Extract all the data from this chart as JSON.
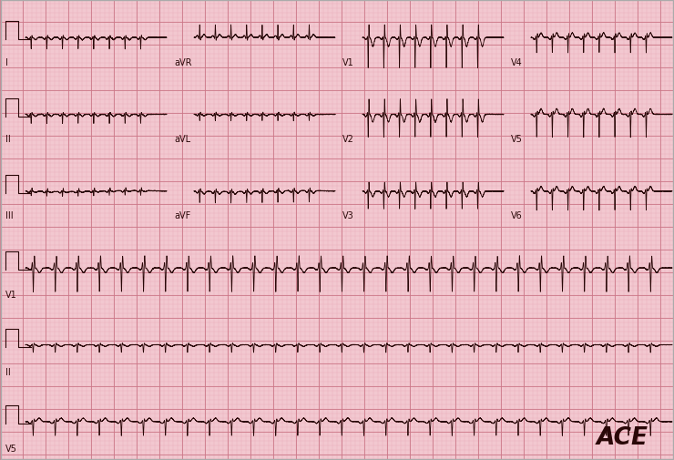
{
  "bg_color": "#f2c8d0",
  "grid_minor_color": "#e8aab8",
  "grid_major_color": "#cc7788",
  "ecg_color": "#2a0808",
  "fig_width": 7.4,
  "fig_height": 5.06,
  "dpi": 100,
  "watermark": "ACE",
  "row_labels_left": [
    "I",
    "II",
    "III",
    "V1",
    "II",
    "V5"
  ],
  "row_labels_col1": [
    "aVR",
    "aVL",
    "aVF",
    "",
    "",
    ""
  ],
  "row_labels_col2": [
    "V1",
    "V2",
    "V3",
    "",
    "",
    ""
  ],
  "row_labels_col3": [
    "V4",
    "V5",
    "V6",
    "",
    "",
    ""
  ],
  "label_fontsize": 7,
  "lw": 0.6
}
